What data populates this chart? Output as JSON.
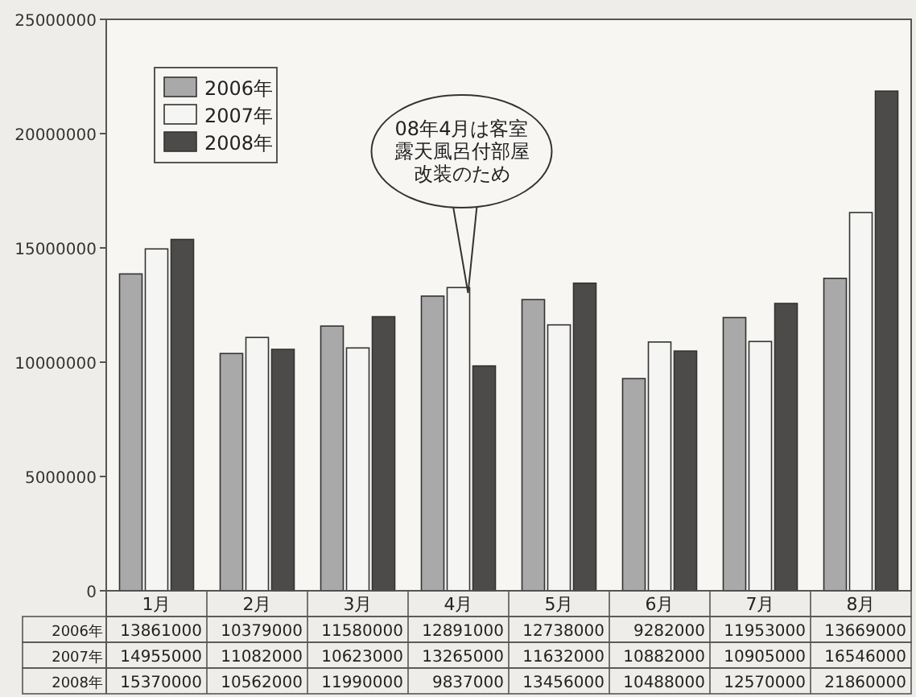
{
  "chart_data": {
    "type": "bar",
    "categories": [
      "1月",
      "2月",
      "3月",
      "4月",
      "5月",
      "6月",
      "7月",
      "8月"
    ],
    "series": [
      {
        "name": "2006年",
        "color": "#a9a9a9",
        "values": [
          13861000,
          10379000,
          11580000,
          12891000,
          12738000,
          9282000,
          11953000,
          13669000
        ]
      },
      {
        "name": "2007年",
        "color": "#f5f5f3",
        "values": [
          14955000,
          11082000,
          10623000,
          13265000,
          11632000,
          10882000,
          10905000,
          16546000
        ]
      },
      {
        "name": "2008年",
        "color": "#4d4a4a",
        "values": [
          15370000,
          10562000,
          11990000,
          9837000,
          13456000,
          10488000,
          12570000,
          21860000
        ]
      }
    ],
    "ylim": [
      0,
      25000000
    ],
    "yticks": [
      0,
      5000000,
      10000000,
      15000000,
      20000000,
      25000000
    ],
    "legend": "top left",
    "data_labels": true,
    "annotations": [
      "08年4月は客室露天風呂付部屋改装のため"
    ]
  }
}
